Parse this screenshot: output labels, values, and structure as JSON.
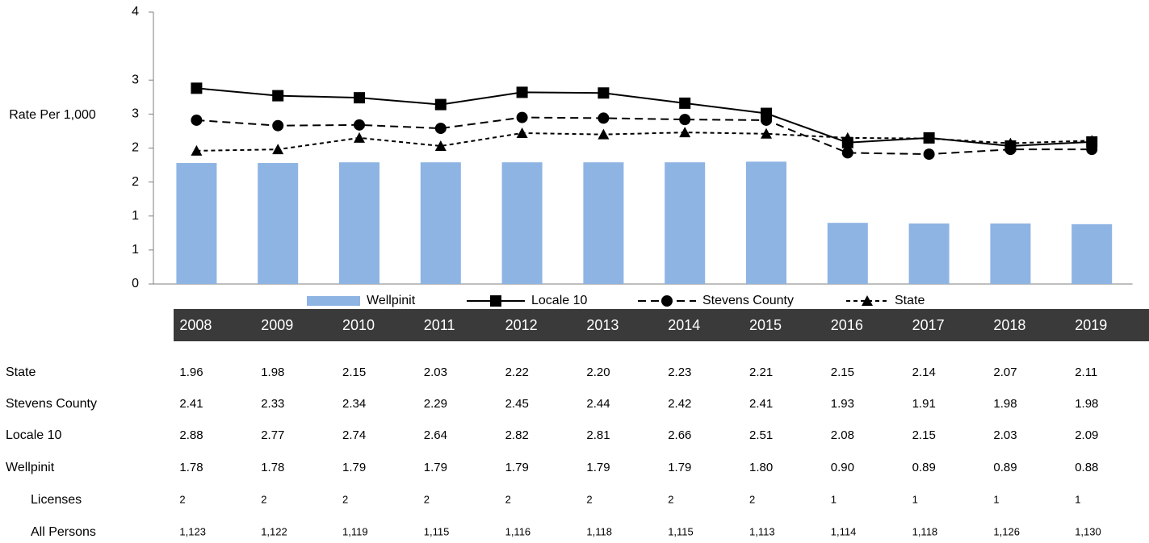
{
  "chart_data": {
    "type": "bar-line",
    "y_label": "Rate Per 1,000",
    "categories": [
      "2008",
      "2009",
      "2010",
      "2011",
      "2012",
      "2013",
      "2014",
      "2015",
      "2016",
      "2017",
      "2018",
      "2019"
    ],
    "ylim": [
      0,
      4
    ],
    "yticks": [
      0,
      {
        "value": 0.5,
        "label": "1"
      },
      {
        "value": 1,
        "label": "1"
      },
      {
        "value": 1.5,
        "label": "2"
      },
      {
        "value": 2,
        "label": "2"
      },
      {
        "value": 2.5,
        "label": "3"
      },
      {
        "value": 3,
        "label": "3"
      },
      4
    ],
    "series": [
      {
        "name": "Wellpinit",
        "type": "bar",
        "color": "#8eb4e3",
        "values": [
          1.78,
          1.78,
          1.79,
          1.79,
          1.79,
          1.79,
          1.79,
          1.8,
          0.9,
          0.89,
          0.89,
          0.88
        ],
        "value_labels": [
          "1.78",
          "1.78",
          "1.79",
          "1.79",
          "1.79",
          "1.79",
          "1.79",
          "1.80",
          "0.90",
          "0.89",
          "0.89",
          "0.88"
        ]
      },
      {
        "name": "Locale 10",
        "type": "line",
        "color": "#000000",
        "dash": "solid",
        "marker": "square",
        "values": [
          2.88,
          2.77,
          2.74,
          2.64,
          2.82,
          2.81,
          2.66,
          2.51,
          2.08,
          2.15,
          2.03,
          2.09
        ],
        "value_labels": [
          "2.88",
          "2.77",
          "2.74",
          "2.64",
          "2.82",
          "2.81",
          "2.66",
          "2.51",
          "2.08",
          "2.15",
          "2.03",
          "2.09"
        ]
      },
      {
        "name": "Stevens County",
        "type": "line",
        "color": "#000000",
        "dash": "long",
        "marker": "circle",
        "values": [
          2.41,
          2.33,
          2.34,
          2.29,
          2.45,
          2.44,
          2.42,
          2.41,
          1.93,
          1.91,
          1.98,
          1.98
        ],
        "value_labels": [
          "2.41",
          "2.33",
          "2.34",
          "2.29",
          "2.45",
          "2.44",
          "2.42",
          "2.41",
          "1.93",
          "1.91",
          "1.98",
          "1.98"
        ]
      },
      {
        "name": "State",
        "type": "line",
        "color": "#000000",
        "dash": "short",
        "marker": "triangle",
        "values": [
          1.96,
          1.98,
          2.15,
          2.03,
          2.22,
          2.2,
          2.23,
          2.21,
          2.15,
          2.14,
          2.07,
          2.11
        ],
        "value_labels": [
          "1.96",
          "1.98",
          "2.15",
          "2.03",
          "2.22",
          "2.20",
          "2.23",
          "2.21",
          "2.15",
          "2.14",
          "2.07",
          "2.11"
        ]
      }
    ],
    "table_rows": [
      {
        "name": "Licenses",
        "values": [
          2,
          2,
          2,
          2,
          2,
          2,
          2,
          2,
          1,
          1,
          1,
          1
        ]
      },
      {
        "name": "All Persons",
        "values": [
          1123,
          1122,
          1119,
          1115,
          1116,
          1118,
          1115,
          1113,
          1114,
          1118,
          1126,
          1130
        ],
        "value_labels": [
          "1,123",
          "1,122",
          "1,119",
          "1,115",
          "1,116",
          "1,118",
          "1,115",
          "1,113",
          "1,114",
          "1,118",
          "1,126",
          "1,130"
        ]
      }
    ]
  }
}
